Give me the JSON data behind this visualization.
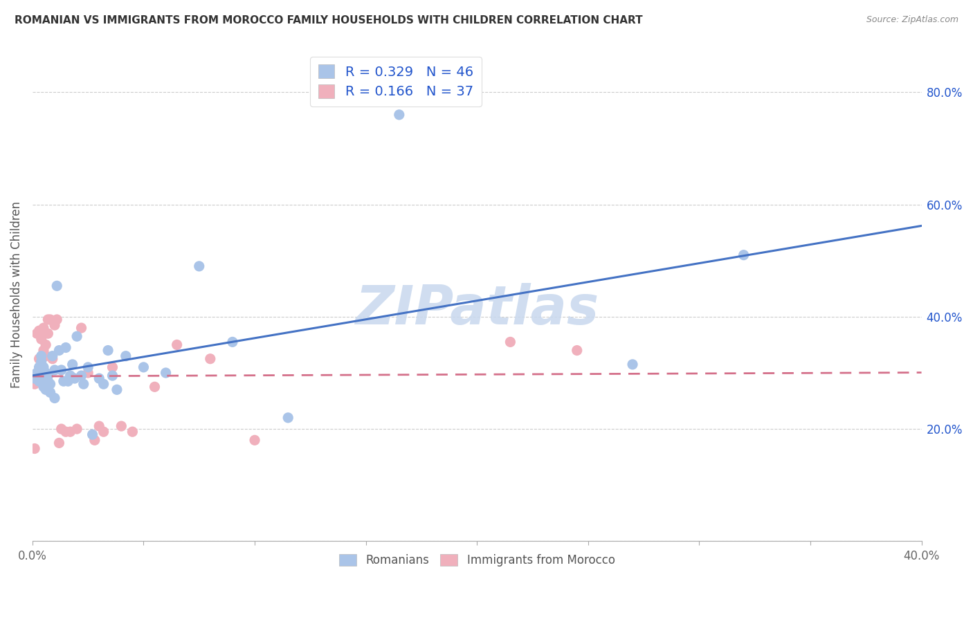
{
  "title": "ROMANIAN VS IMMIGRANTS FROM MOROCCO FAMILY HOUSEHOLDS WITH CHILDREN CORRELATION CHART",
  "source": "Source: ZipAtlas.com",
  "ylabel": "Family Households with Children",
  "xlim": [
    0.0,
    0.4
  ],
  "ylim": [
    0.0,
    0.88
  ],
  "yticks": [
    0.0,
    0.2,
    0.4,
    0.6,
    0.8
  ],
  "ytick_labels": [
    "",
    "20.0%",
    "40.0%",
    "60.0%",
    "80.0%"
  ],
  "xticks": [
    0.0,
    0.05,
    0.1,
    0.15,
    0.2,
    0.25,
    0.3,
    0.35,
    0.4
  ],
  "xtick_labels": [
    "0.0%",
    "",
    "",
    "",
    "",
    "",
    "",
    "",
    "40.0%"
  ],
  "legend_r1_r": "0.329",
  "legend_r1_n": "46",
  "legend_r2_r": "0.166",
  "legend_r2_n": "37",
  "blue_scatter_color": "#aac4e8",
  "pink_scatter_color": "#f0b0bc",
  "blue_line_color": "#4472c4",
  "pink_line_color": "#d4708a",
  "legend_text_color": "#2255cc",
  "watermark_color": "#c8d8ee",
  "romanians_x": [
    0.001,
    0.002,
    0.003,
    0.003,
    0.004,
    0.004,
    0.005,
    0.005,
    0.005,
    0.006,
    0.006,
    0.007,
    0.007,
    0.008,
    0.008,
    0.009,
    0.01,
    0.01,
    0.011,
    0.012,
    0.013,
    0.014,
    0.015,
    0.016,
    0.017,
    0.018,
    0.019,
    0.02,
    0.022,
    0.023,
    0.025,
    0.027,
    0.03,
    0.032,
    0.034,
    0.036,
    0.038,
    0.042,
    0.05,
    0.06,
    0.075,
    0.09,
    0.115,
    0.165,
    0.27,
    0.32
  ],
  "romanians_y": [
    0.29,
    0.3,
    0.31,
    0.285,
    0.32,
    0.33,
    0.295,
    0.275,
    0.31,
    0.27,
    0.3,
    0.285,
    0.295,
    0.28,
    0.265,
    0.33,
    0.255,
    0.305,
    0.455,
    0.34,
    0.305,
    0.285,
    0.345,
    0.285,
    0.295,
    0.315,
    0.29,
    0.365,
    0.295,
    0.28,
    0.31,
    0.19,
    0.29,
    0.28,
    0.34,
    0.295,
    0.27,
    0.33,
    0.31,
    0.3,
    0.49,
    0.355,
    0.22,
    0.76,
    0.315,
    0.51
  ],
  "morocco_x": [
    0.001,
    0.001,
    0.002,
    0.002,
    0.003,
    0.003,
    0.004,
    0.004,
    0.005,
    0.005,
    0.006,
    0.006,
    0.007,
    0.007,
    0.008,
    0.009,
    0.01,
    0.011,
    0.012,
    0.013,
    0.015,
    0.017,
    0.02,
    0.022,
    0.025,
    0.028,
    0.03,
    0.032,
    0.036,
    0.04,
    0.045,
    0.055,
    0.065,
    0.08,
    0.1,
    0.215,
    0.245
  ],
  "morocco_y": [
    0.165,
    0.28,
    0.295,
    0.37,
    0.325,
    0.375,
    0.295,
    0.36,
    0.34,
    0.38,
    0.33,
    0.35,
    0.395,
    0.37,
    0.395,
    0.325,
    0.385,
    0.395,
    0.175,
    0.2,
    0.195,
    0.195,
    0.2,
    0.38,
    0.3,
    0.18,
    0.205,
    0.195,
    0.31,
    0.205,
    0.195,
    0.275,
    0.35,
    0.325,
    0.18,
    0.355,
    0.34
  ]
}
